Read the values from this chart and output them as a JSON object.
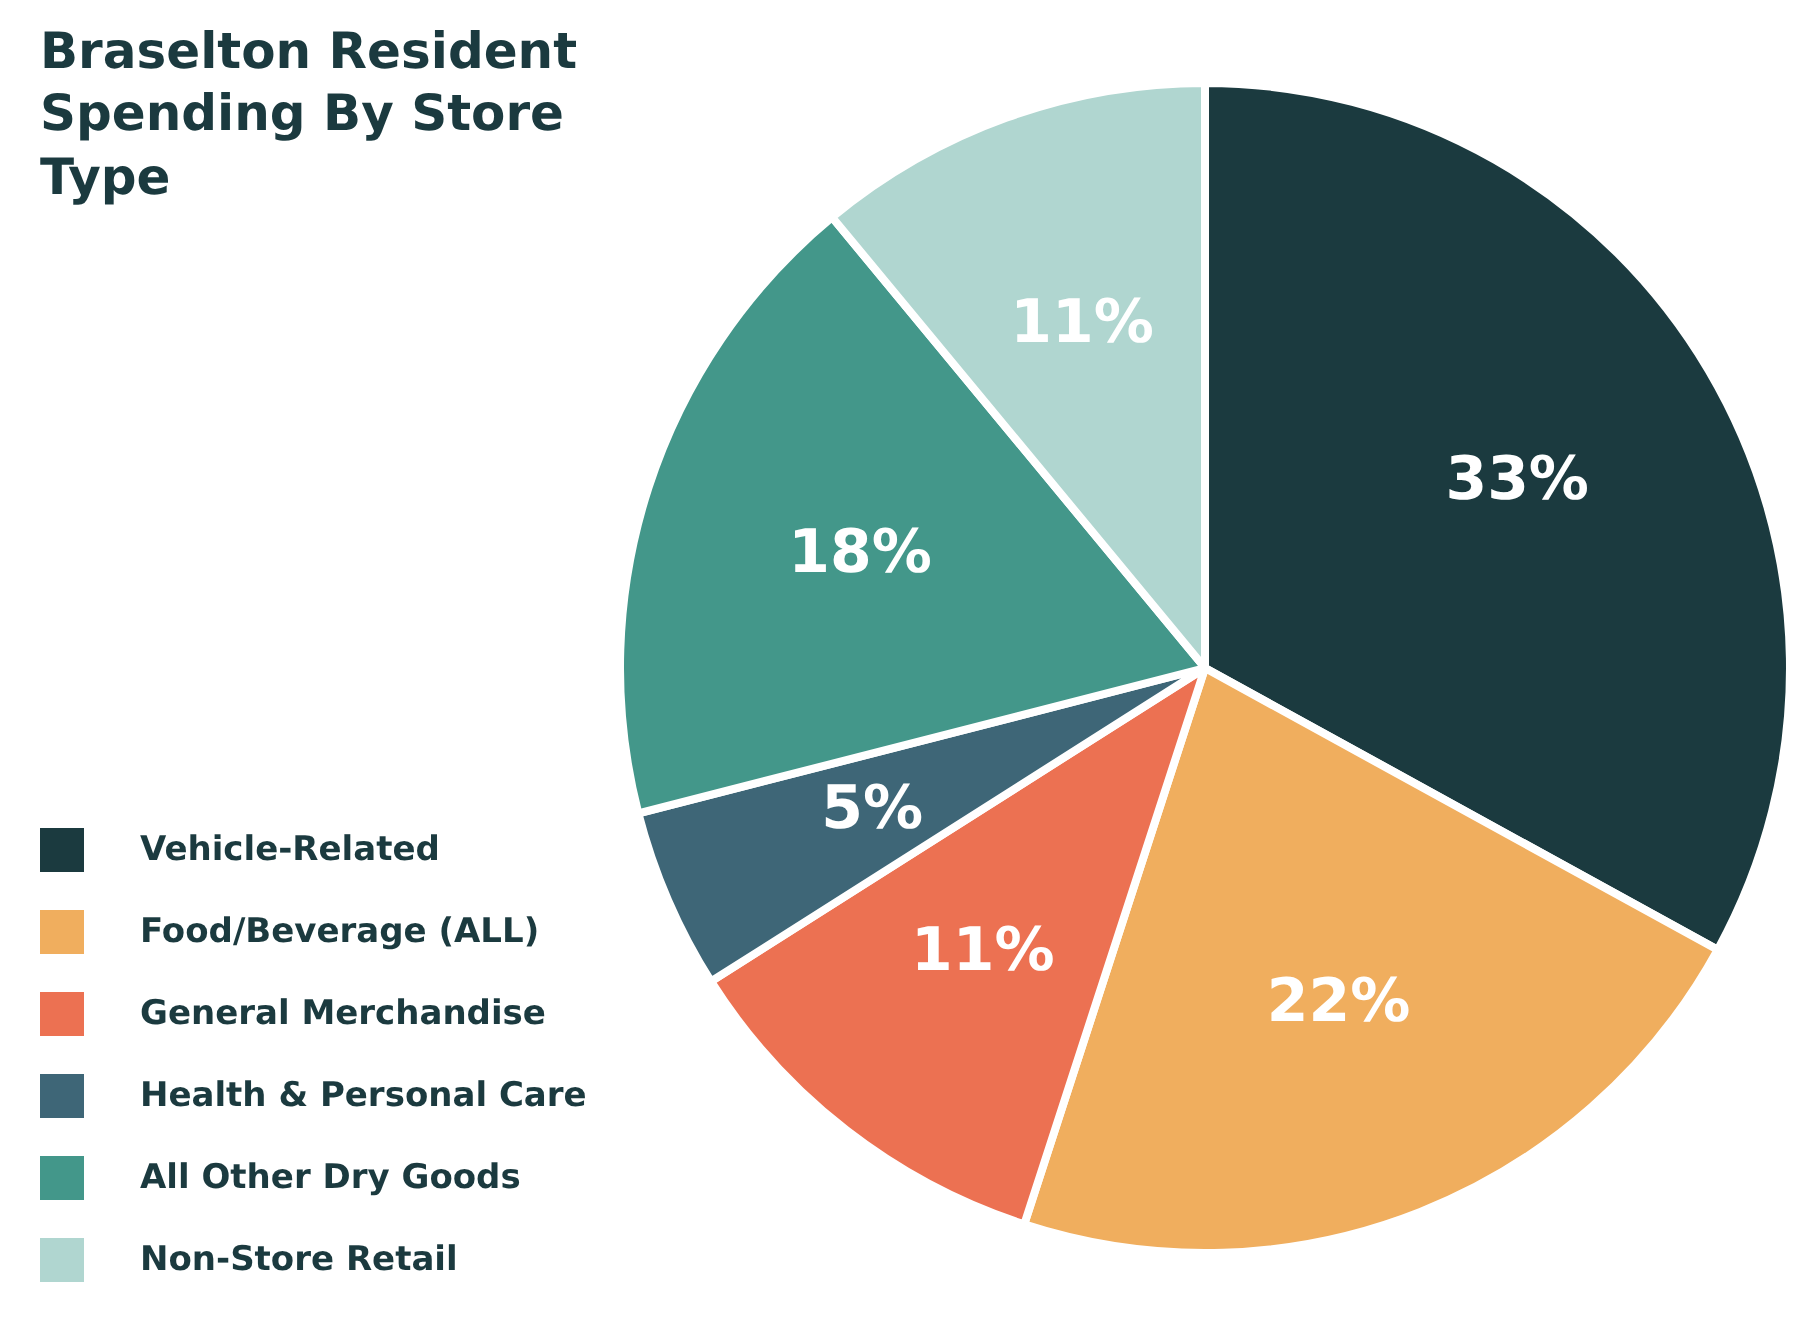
{
  "chart_data": {
    "type": "pie",
    "title": "Braselton Resident Spending By Store Type",
    "categories": [
      "Vehicle-Related",
      "Food/Beverage (ALL)",
      "General Merchandise",
      "Health & Personal Care",
      "All Other Dry Goods",
      "Non-Store Retail"
    ],
    "values": [
      33,
      22,
      11,
      5,
      18,
      11
    ],
    "value_labels": [
      "33%",
      "22%",
      "11%",
      "5%",
      "18%",
      "11%"
    ],
    "colors": [
      "#1b3a3f",
      "#f0ae5e",
      "#ec7152",
      "#3e6677",
      "#43978a",
      "#b0d6d0"
    ],
    "legend": "bottom left"
  }
}
